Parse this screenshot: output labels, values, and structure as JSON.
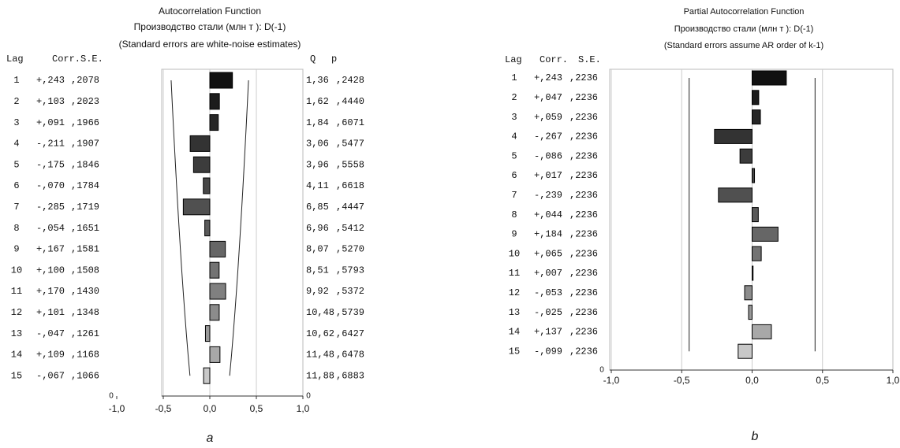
{
  "chart_data": [
    {
      "type": "bar",
      "orientation": "horizontal",
      "title": "Autocorrelation Function",
      "subtitle": "Производство стали (млн  т ): D(-1)",
      "note": "(Standard errors are white-noise estimates)",
      "caption": "a",
      "lag_header": "Lag",
      "categories": [
        "1",
        "2",
        "3",
        "4",
        "5",
        "6",
        "7",
        "8",
        "9",
        "10",
        "11",
        "12",
        "13",
        "14",
        "15"
      ],
      "series": [
        {
          "name": "Corr.",
          "values": [
            0.243,
            0.103,
            0.091,
            -0.211,
            -0.175,
            -0.07,
            -0.285,
            -0.054,
            0.167,
            0.1,
            0.17,
            0.101,
            -0.047,
            0.109,
            -0.067
          ],
          "value_labels": [
            "+,243",
            "+,103",
            "+,091",
            "-,211",
            "-,175",
            "-,070",
            "-,285",
            "-,054",
            "+,167",
            "+,100",
            "+,170",
            "+,101",
            "-,047",
            "+,109",
            "-,067"
          ],
          "colors": [
            "#111111",
            "#1c1c1c",
            "#262626",
            "#333333",
            "#3c3c3c",
            "#474747",
            "#505050",
            "#5a5a5a",
            "#666666",
            "#737373",
            "#808080",
            "#8c8c8c",
            "#999999",
            "#a8a8a8",
            "#c8c8c8"
          ]
        }
      ],
      "se": {
        "name": "S.E.",
        "values": [
          0.2078,
          0.2023,
          0.1966,
          0.1907,
          0.1846,
          0.1784,
          0.1719,
          0.1651,
          0.1581,
          0.1508,
          0.143,
          0.1348,
          0.1261,
          0.1168,
          0.1066
        ],
        "value_labels": [
          ",2078",
          ",2023",
          ",1966",
          ",1907",
          ",1846",
          ",1784",
          ",1719",
          ",1651",
          ",1581",
          ",1508",
          ",1430",
          ",1348",
          ",1261",
          ",1168",
          ",1066"
        ]
      },
      "q": {
        "name": "Q",
        "labels": [
          "1,36",
          "1,62",
          "1,84",
          "3,06",
          "3,96",
          "4,11",
          "6,85",
          "6,96",
          "8,07",
          "8,51",
          "9,92",
          "10,48",
          "10,62",
          "11,48",
          "11,88"
        ]
      },
      "p": {
        "name": "p",
        "labels": [
          ",2428",
          ",4440",
          ",6071",
          ",5477",
          ",5558",
          ",6618",
          ",4447",
          ",5412",
          ",5270",
          ",5793",
          ",5372",
          ",5739",
          ",6427",
          ",6478",
          ",6883"
        ]
      },
      "xlim": [
        -1,
        1
      ],
      "xticks": [
        {
          "value": -1,
          "label": "-1,0"
        },
        {
          "value": -0.5,
          "label": "-0,5"
        },
        {
          "value": 0,
          "label": "0,0"
        },
        {
          "value": 0.5,
          "label": "0,5"
        },
        {
          "value": 1,
          "label": "1,0"
        }
      ],
      "yticks": [
        0
      ],
      "grid": true
    },
    {
      "type": "bar",
      "orientation": "horizontal",
      "title": "Partial Autocorrelation Function",
      "subtitle": "Производство стали (млн  т ): D(-1)",
      "note": "(Standard errors assume AR order of k-1)",
      "caption": "b",
      "lag_header": "Lag",
      "categories": [
        "1",
        "2",
        "3",
        "4",
        "5",
        "6",
        "7",
        "8",
        "9",
        "10",
        "11",
        "12",
        "13",
        "14",
        "15"
      ],
      "series": [
        {
          "name": "Corr.",
          "values": [
            0.243,
            0.047,
            0.059,
            -0.267,
            -0.086,
            0.017,
            -0.239,
            0.044,
            0.184,
            0.065,
            0.007,
            -0.053,
            -0.025,
            0.137,
            -0.099
          ],
          "value_labels": [
            "+,243",
            "+,047",
            "+,059",
            "-,267",
            "-,086",
            "+,017",
            "-,239",
            "+,044",
            "+,184",
            "+,065",
            "+,007",
            "-,053",
            "-,025",
            "+,137",
            "-,099"
          ],
          "colors": [
            "#111111",
            "#1c1c1c",
            "#262626",
            "#333333",
            "#3c3c3c",
            "#474747",
            "#505050",
            "#5a5a5a",
            "#666666",
            "#737373",
            "#808080",
            "#8c8c8c",
            "#999999",
            "#a8a8a8",
            "#c8c8c8"
          ]
        }
      ],
      "se": {
        "name": "S.E.",
        "values": [
          0.2236,
          0.2236,
          0.2236,
          0.2236,
          0.2236,
          0.2236,
          0.2236,
          0.2236,
          0.2236,
          0.2236,
          0.2236,
          0.2236,
          0.2236,
          0.2236,
          0.2236
        ],
        "value_labels": [
          ",2236",
          ",2236",
          ",2236",
          ",2236",
          ",2236",
          ",2236",
          ",2236",
          ",2236",
          ",2236",
          ",2236",
          ",2236",
          ",2236",
          ",2236",
          ",2236",
          ",2236"
        ]
      },
      "xlim": [
        -1,
        1
      ],
      "xticks": [
        {
          "value": -1,
          "label": "-1,0"
        },
        {
          "value": -0.5,
          "label": "-0,5"
        },
        {
          "value": 0,
          "label": "0,0"
        },
        {
          "value": 0.5,
          "label": "0,5"
        },
        {
          "value": 1,
          "label": "1,0"
        }
      ],
      "yticks": [
        0
      ],
      "grid": true
    }
  ]
}
